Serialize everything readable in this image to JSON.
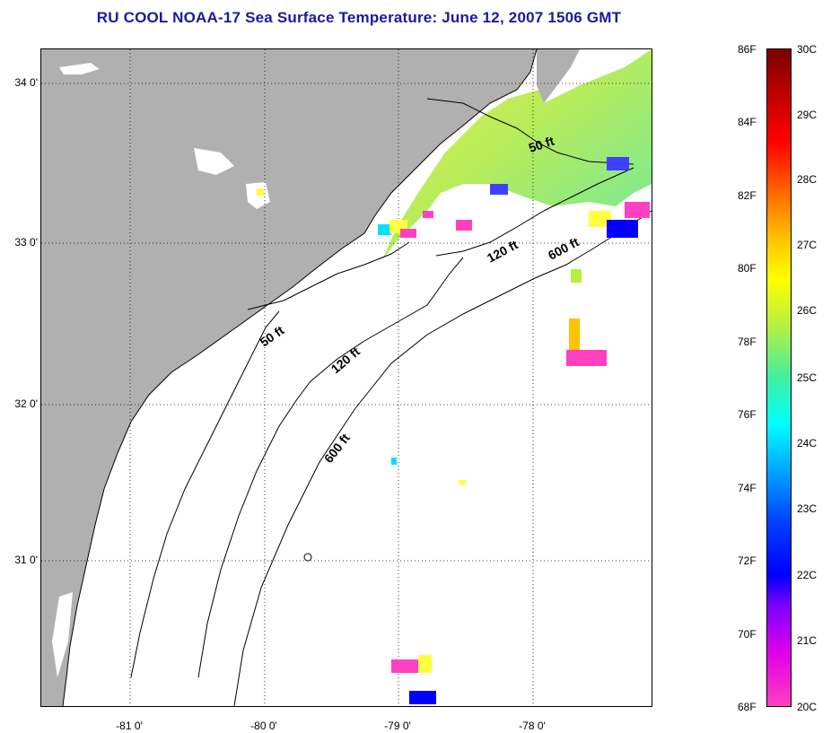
{
  "title": "RU COOL  NOAA-17  Sea Surface Temperature:  June 12, 2007 1506 GMT",
  "latitude_labels": [
    "34 0'",
    "33 0'",
    "32 0'",
    "31 0'"
  ],
  "longitude_labels": [
    "-81 0'",
    "-80 0'",
    "-79 0'",
    "-78 0'"
  ],
  "depth_contours": {
    "c50_upper": "50 ft",
    "c120_upper": "120 ft",
    "c600_upper": "600 ft",
    "c50_lower": "50 ft",
    "c120_lower": "120 ft",
    "c600_lower": "600 ft"
  },
  "colorbar": {
    "fahrenheit": [
      "86F",
      "84F",
      "82F",
      "80F",
      "78F",
      "76F",
      "74F",
      "72F",
      "70F",
      "68F"
    ],
    "celsius": [
      "30C",
      "29C",
      "28C",
      "27C",
      "26C",
      "25C",
      "24C",
      "23C",
      "22C",
      "21C",
      "20C"
    ]
  },
  "colors": {
    "title": "#1a1a9e",
    "land": "#b0b0b0",
    "ocean_cloud": "#ffffff"
  }
}
